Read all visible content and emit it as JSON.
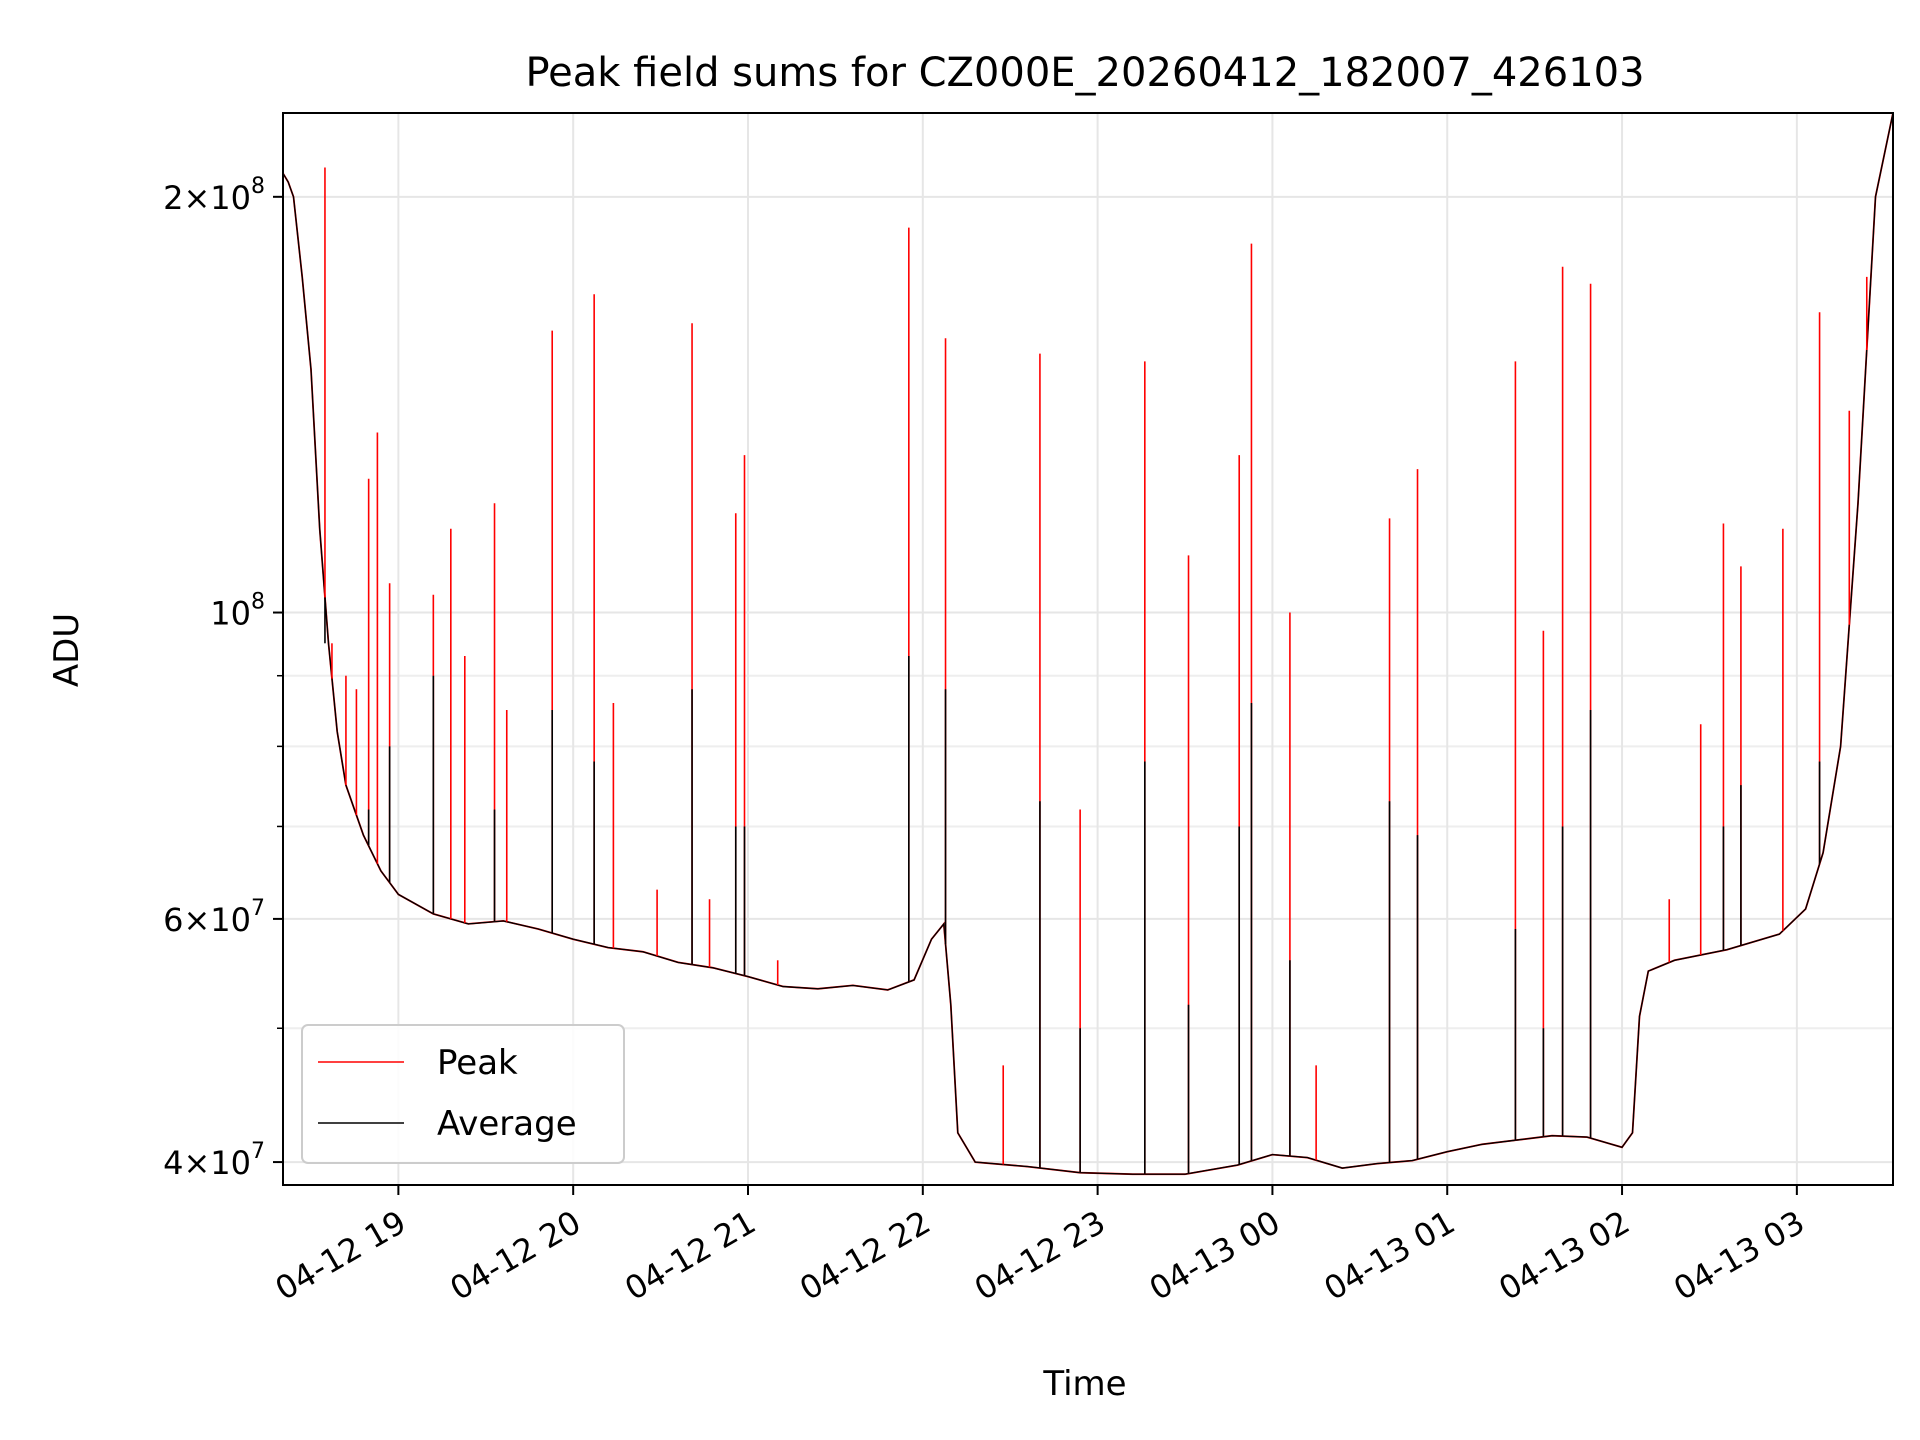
{
  "chart_data": {
    "type": "line",
    "title": "Peak field sums for CZ000E_20260412_182007_426103",
    "xlabel": "Time",
    "ylabel": "ADU",
    "yscale": "log",
    "ylim": [
      38500000,
      230000000
    ],
    "xlim_hours": [
      18.34,
      27.55
    ],
    "grid": true,
    "legend_position": "lower-left",
    "y_major_ticks": [
      {
        "value": 40000000,
        "base": "4",
        "exp": "7"
      },
      {
        "value": 60000000,
        "base": "6",
        "exp": "7"
      },
      {
        "value": 100000000,
        "base": "",
        "exp": "8"
      },
      {
        "value": 200000000,
        "base": "2",
        "exp": "8"
      }
    ],
    "y_minor_ticks": [
      50000000,
      70000000,
      80000000,
      90000000
    ],
    "x_ticks": [
      {
        "hour": 19,
        "label": "04-12 19"
      },
      {
        "hour": 20,
        "label": "04-12 20"
      },
      {
        "hour": 21,
        "label": "04-12 21"
      },
      {
        "hour": 22,
        "label": "04-12 22"
      },
      {
        "hour": 23,
        "label": "04-12 23"
      },
      {
        "hour": 24,
        "label": "04-13 00"
      },
      {
        "hour": 25,
        "label": "04-13 01"
      },
      {
        "hour": 26,
        "label": "04-13 02"
      },
      {
        "hour": 27,
        "label": "04-13 03"
      }
    ],
    "series": [
      {
        "name": "Peak",
        "color": "#ff0000",
        "points": [
          [
            18.34,
            208000000
          ],
          [
            18.37,
            205000000
          ],
          [
            18.4,
            200000000
          ],
          [
            18.45,
            175000000
          ],
          [
            18.5,
            150000000
          ],
          [
            18.55,
            115000000
          ],
          [
            18.6,
            95000000
          ],
          [
            18.65,
            82000000
          ],
          [
            18.7,
            75000000
          ],
          [
            18.8,
            69000000
          ],
          [
            18.9,
            65000000
          ],
          [
            19.0,
            62500000
          ],
          [
            19.2,
            60500000
          ],
          [
            19.4,
            59500000
          ],
          [
            19.6,
            59800000
          ],
          [
            19.8,
            59000000
          ],
          [
            20.0,
            58000000
          ],
          [
            20.2,
            57200000
          ],
          [
            20.4,
            56800000
          ],
          [
            20.6,
            55800000
          ],
          [
            20.8,
            55300000
          ],
          [
            21.0,
            54500000
          ],
          [
            21.2,
            53600000
          ],
          [
            21.4,
            53400000
          ],
          [
            21.6,
            53700000
          ],
          [
            21.8,
            53300000
          ],
          [
            21.95,
            54200000
          ],
          [
            22.05,
            58000000
          ],
          [
            22.12,
            59500000
          ],
          [
            22.16,
            52000000
          ],
          [
            22.2,
            42000000
          ],
          [
            22.3,
            40000000
          ],
          [
            22.6,
            39700000
          ],
          [
            22.9,
            39300000
          ],
          [
            23.2,
            39200000
          ],
          [
            23.5,
            39200000
          ],
          [
            23.8,
            39800000
          ],
          [
            24.0,
            40500000
          ],
          [
            24.2,
            40300000
          ],
          [
            24.4,
            39600000
          ],
          [
            24.6,
            39900000
          ],
          [
            24.8,
            40100000
          ],
          [
            25.0,
            40700000
          ],
          [
            25.2,
            41200000
          ],
          [
            25.4,
            41500000
          ],
          [
            25.6,
            41800000
          ],
          [
            25.8,
            41700000
          ],
          [
            26.0,
            41000000
          ],
          [
            26.06,
            42000000
          ],
          [
            26.1,
            51000000
          ],
          [
            26.15,
            55000000
          ],
          [
            26.3,
            56000000
          ],
          [
            26.6,
            57000000
          ],
          [
            26.9,
            58500000
          ],
          [
            27.05,
            61000000
          ],
          [
            27.15,
            67000000
          ],
          [
            27.25,
            80000000
          ],
          [
            27.35,
            120000000
          ],
          [
            27.45,
            200000000
          ],
          [
            27.55,
            230000000
          ]
        ],
        "spikes": [
          [
            18.58,
            210000000
          ],
          [
            18.62,
            95000000
          ],
          [
            18.7,
            90000000
          ],
          [
            18.76,
            88000000
          ],
          [
            18.83,
            125000000
          ],
          [
            18.88,
            135000000
          ],
          [
            18.95,
            105000000
          ],
          [
            19.2,
            103000000
          ],
          [
            19.3,
            115000000
          ],
          [
            19.38,
            93000000
          ],
          [
            19.55,
            120000000
          ],
          [
            19.62,
            85000000
          ],
          [
            19.88,
            160000000
          ],
          [
            20.12,
            170000000
          ],
          [
            20.23,
            86000000
          ],
          [
            20.48,
            63000000
          ],
          [
            20.68,
            162000000
          ],
          [
            20.78,
            62000000
          ],
          [
            20.93,
            118000000
          ],
          [
            20.98,
            130000000
          ],
          [
            21.17,
            56000000
          ],
          [
            21.92,
            190000000
          ],
          [
            22.13,
            158000000
          ],
          [
            22.46,
            47000000
          ],
          [
            22.67,
            154000000
          ],
          [
            22.9,
            72000000
          ],
          [
            23.27,
            152000000
          ],
          [
            23.52,
            110000000
          ],
          [
            23.81,
            130000000
          ],
          [
            23.88,
            185000000
          ],
          [
            24.1,
            100000000
          ],
          [
            24.25,
            47000000
          ],
          [
            24.67,
            117000000
          ],
          [
            24.83,
            127000000
          ],
          [
            25.39,
            152000000
          ],
          [
            25.55,
            97000000
          ],
          [
            25.66,
            178000000
          ],
          [
            25.82,
            173000000
          ],
          [
            26.27,
            62000000
          ],
          [
            26.45,
            83000000
          ],
          [
            26.58,
            116000000
          ],
          [
            26.68,
            108000000
          ],
          [
            26.92,
            115000000
          ],
          [
            27.13,
            165000000
          ],
          [
            27.3,
            140000000
          ],
          [
            27.4,
            175000000
          ]
        ]
      },
      {
        "name": "Average",
        "color": "#000000",
        "points": [
          [
            18.34,
            208000000
          ],
          [
            18.37,
            205000000
          ],
          [
            18.4,
            200000000
          ],
          [
            18.45,
            175000000
          ],
          [
            18.5,
            150000000
          ],
          [
            18.55,
            115000000
          ],
          [
            18.6,
            95000000
          ],
          [
            18.65,
            82000000
          ],
          [
            18.7,
            75000000
          ],
          [
            18.8,
            69000000
          ],
          [
            18.9,
            65000000
          ],
          [
            19.0,
            62500000
          ],
          [
            19.2,
            60500000
          ],
          [
            19.4,
            59500000
          ],
          [
            19.6,
            59800000
          ],
          [
            19.8,
            59000000
          ],
          [
            20.0,
            58000000
          ],
          [
            20.2,
            57200000
          ],
          [
            20.4,
            56800000
          ],
          [
            20.6,
            55800000
          ],
          [
            20.8,
            55300000
          ],
          [
            21.0,
            54500000
          ],
          [
            21.2,
            53600000
          ],
          [
            21.4,
            53400000
          ],
          [
            21.6,
            53700000
          ],
          [
            21.8,
            53300000
          ],
          [
            21.95,
            54200000
          ],
          [
            22.05,
            58000000
          ],
          [
            22.12,
            59500000
          ],
          [
            22.16,
            52000000
          ],
          [
            22.2,
            42000000
          ],
          [
            22.3,
            40000000
          ],
          [
            22.6,
            39700000
          ],
          [
            22.9,
            39300000
          ],
          [
            23.2,
            39200000
          ],
          [
            23.5,
            39200000
          ],
          [
            23.8,
            39800000
          ],
          [
            24.0,
            40500000
          ],
          [
            24.2,
            40300000
          ],
          [
            24.4,
            39600000
          ],
          [
            24.6,
            39900000
          ],
          [
            24.8,
            40100000
          ],
          [
            25.0,
            40700000
          ],
          [
            25.2,
            41200000
          ],
          [
            25.4,
            41500000
          ],
          [
            25.6,
            41800000
          ],
          [
            25.8,
            41700000
          ],
          [
            26.0,
            41000000
          ],
          [
            26.06,
            42000000
          ],
          [
            26.1,
            51000000
          ],
          [
            26.15,
            55000000
          ],
          [
            26.3,
            56000000
          ],
          [
            26.6,
            57000000
          ],
          [
            26.9,
            58500000
          ],
          [
            27.05,
            61000000
          ],
          [
            27.15,
            67000000
          ],
          [
            27.25,
            80000000
          ],
          [
            27.35,
            120000000
          ],
          [
            27.45,
            200000000
          ],
          [
            27.55,
            230000000
          ]
        ],
        "spikes": [
          [
            18.58,
            95000000
          ],
          [
            18.83,
            72000000
          ],
          [
            18.95,
            80000000
          ],
          [
            19.2,
            90000000
          ],
          [
            19.55,
            72000000
          ],
          [
            19.88,
            85000000
          ],
          [
            20.12,
            78000000
          ],
          [
            20.68,
            88000000
          ],
          [
            20.93,
            70000000
          ],
          [
            20.98,
            70000000
          ],
          [
            21.92,
            93000000
          ],
          [
            22.13,
            88000000
          ],
          [
            22.67,
            73000000
          ],
          [
            22.9,
            50000000
          ],
          [
            23.27,
            78000000
          ],
          [
            23.52,
            52000000
          ],
          [
            23.81,
            70000000
          ],
          [
            23.88,
            86000000
          ],
          [
            24.1,
            56000000
          ],
          [
            24.67,
            73000000
          ],
          [
            24.83,
            69000000
          ],
          [
            25.39,
            59000000
          ],
          [
            25.55,
            50000000
          ],
          [
            25.66,
            70000000
          ],
          [
            25.82,
            85000000
          ],
          [
            26.58,
            70000000
          ],
          [
            26.68,
            75000000
          ],
          [
            27.13,
            78000000
          ]
        ]
      }
    ]
  }
}
